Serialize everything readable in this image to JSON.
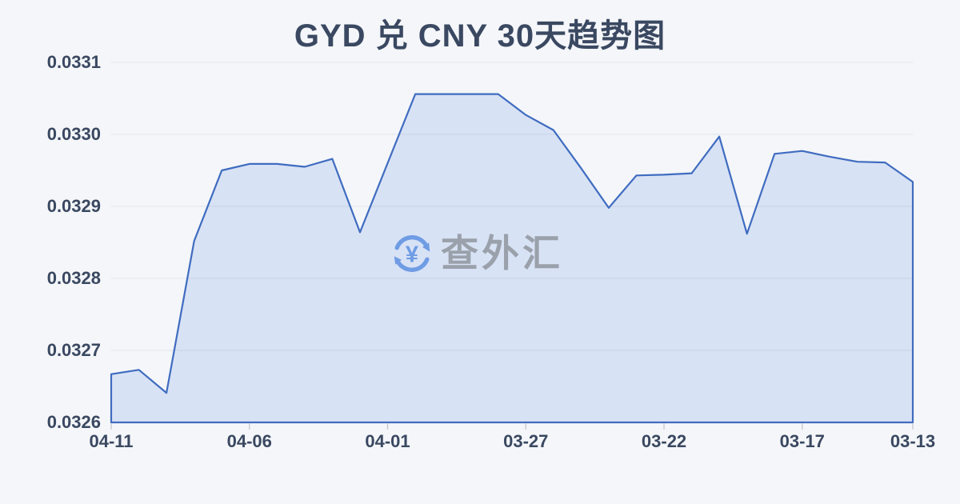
{
  "page": {
    "background": "#f4f6f9"
  },
  "header": {
    "title": "GYD 兑 CNY 30天趋势图",
    "title_color": "#3a4861"
  },
  "watermark": {
    "icon": "currency-exchange-refresh-icon",
    "symbol": "¥",
    "text": "查外汇",
    "icon_color": "#6f9ce4",
    "text_color": "#9aa1ab"
  },
  "chart_data": {
    "type": "area",
    "title": "GYD 兑 CNY 30天趋势图",
    "xlabel": "",
    "ylabel": "",
    "x_order": "newest-first",
    "x": [
      "04-11",
      "04-10",
      "04-09",
      "04-08",
      "04-07",
      "04-06",
      "04-05",
      "04-04",
      "04-03",
      "04-02",
      "04-01",
      "03-31",
      "03-30",
      "03-29",
      "03-28",
      "03-27",
      "03-26",
      "03-25",
      "03-24",
      "03-23",
      "03-22",
      "03-21",
      "03-20",
      "03-19",
      "03-18",
      "03-17",
      "03-16",
      "03-15",
      "03-14",
      "03-13"
    ],
    "values": [
      0.032667,
      0.032673,
      0.032641,
      0.032852,
      0.03295,
      0.032959,
      0.032959,
      0.032955,
      0.032966,
      0.032864,
      0.03296,
      0.033056,
      0.033056,
      0.033056,
      0.033056,
      0.033027,
      0.033006,
      0.032953,
      0.032898,
      0.032943,
      0.032944,
      0.032946,
      0.032997,
      0.032862,
      0.032973,
      0.032977,
      0.032969,
      0.032962,
      0.032961,
      0.032934
    ],
    "x_tick_labels": [
      "04-11",
      "04-06",
      "04-01",
      "03-27",
      "03-22",
      "03-17",
      "03-13"
    ],
    "y_tick_labels": [
      "0.0331",
      "0.0330",
      "0.0329",
      "0.0328",
      "0.0327",
      "0.0326"
    ],
    "ylim": [
      0.0326,
      0.0331
    ],
    "grid": "horizontal",
    "legend": false,
    "colors": {
      "line": "#3f6cc0",
      "fill": "#d8e2f5",
      "grid": "rgba(127,136,150,0.16)",
      "axis_text": "#3a4861",
      "tick": "#c9ced6"
    }
  }
}
